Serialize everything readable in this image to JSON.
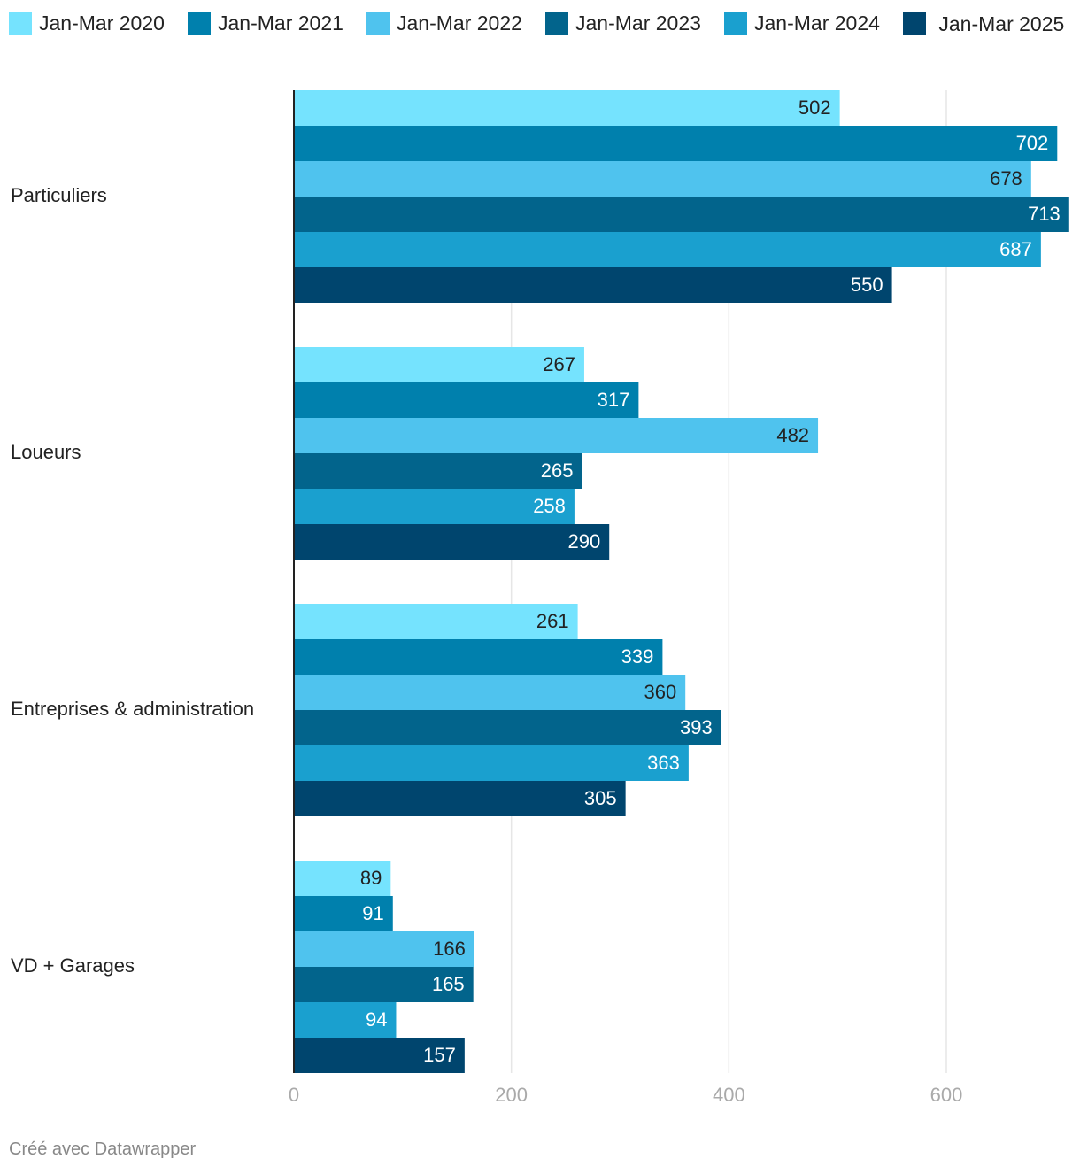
{
  "chart_data": {
    "type": "bar",
    "orientation": "horizontal",
    "title": "",
    "xlabel": "",
    "ylabel": "",
    "xlim": [
      0,
      713
    ],
    "ticks": [
      0,
      200,
      400,
      600
    ],
    "grid": true,
    "legend_position": "top",
    "categories": [
      "Particuliers",
      "Loueurs",
      "Entreprises & administration",
      "VD + Garages"
    ],
    "series": [
      {
        "name": "Jan-Mar 2020",
        "color": "#75e3fe",
        "values": [
          502,
          267,
          261,
          89
        ]
      },
      {
        "name": "Jan-Mar 2021",
        "color": "#0080ad",
        "values": [
          702,
          317,
          339,
          91
        ]
      },
      {
        "name": "Jan-Mar 2022",
        "color": "#4fc3ee",
        "values": [
          678,
          482,
          360,
          166
        ]
      },
      {
        "name": "Jan-Mar 2023",
        "color": "#02648c",
        "values": [
          713,
          265,
          393,
          165
        ]
      },
      {
        "name": "Jan-Mar 2024",
        "color": "#1aa0cf",
        "values": [
          687,
          258,
          363,
          94
        ]
      },
      {
        "name": "Jan-Mar 2025",
        "color": "#00456e",
        "values": [
          550,
          290,
          305,
          157
        ]
      }
    ],
    "label_colors": {
      "dark": "#222222",
      "light": "#ffffff"
    },
    "axis_color": "#222222",
    "grid_color": "#e6e6e6",
    "tick_color": "#aaaaaa"
  },
  "legend": {
    "items": [
      {
        "label": "Jan-Mar 2020",
        "color": "#75e3fe"
      },
      {
        "label": "Jan-Mar 2021",
        "color": "#0080ad"
      },
      {
        "label": "Jan-Mar 2022",
        "color": "#4fc3ee"
      },
      {
        "label": "Jan-Mar 2023",
        "color": "#02648c"
      },
      {
        "label": "Jan-Mar 2024",
        "color": "#1aa0cf"
      },
      {
        "label": "Jan-Mar 2025",
        "color": "#00456e"
      }
    ]
  },
  "footer": {
    "credit": "Créé avec Datawrapper"
  }
}
